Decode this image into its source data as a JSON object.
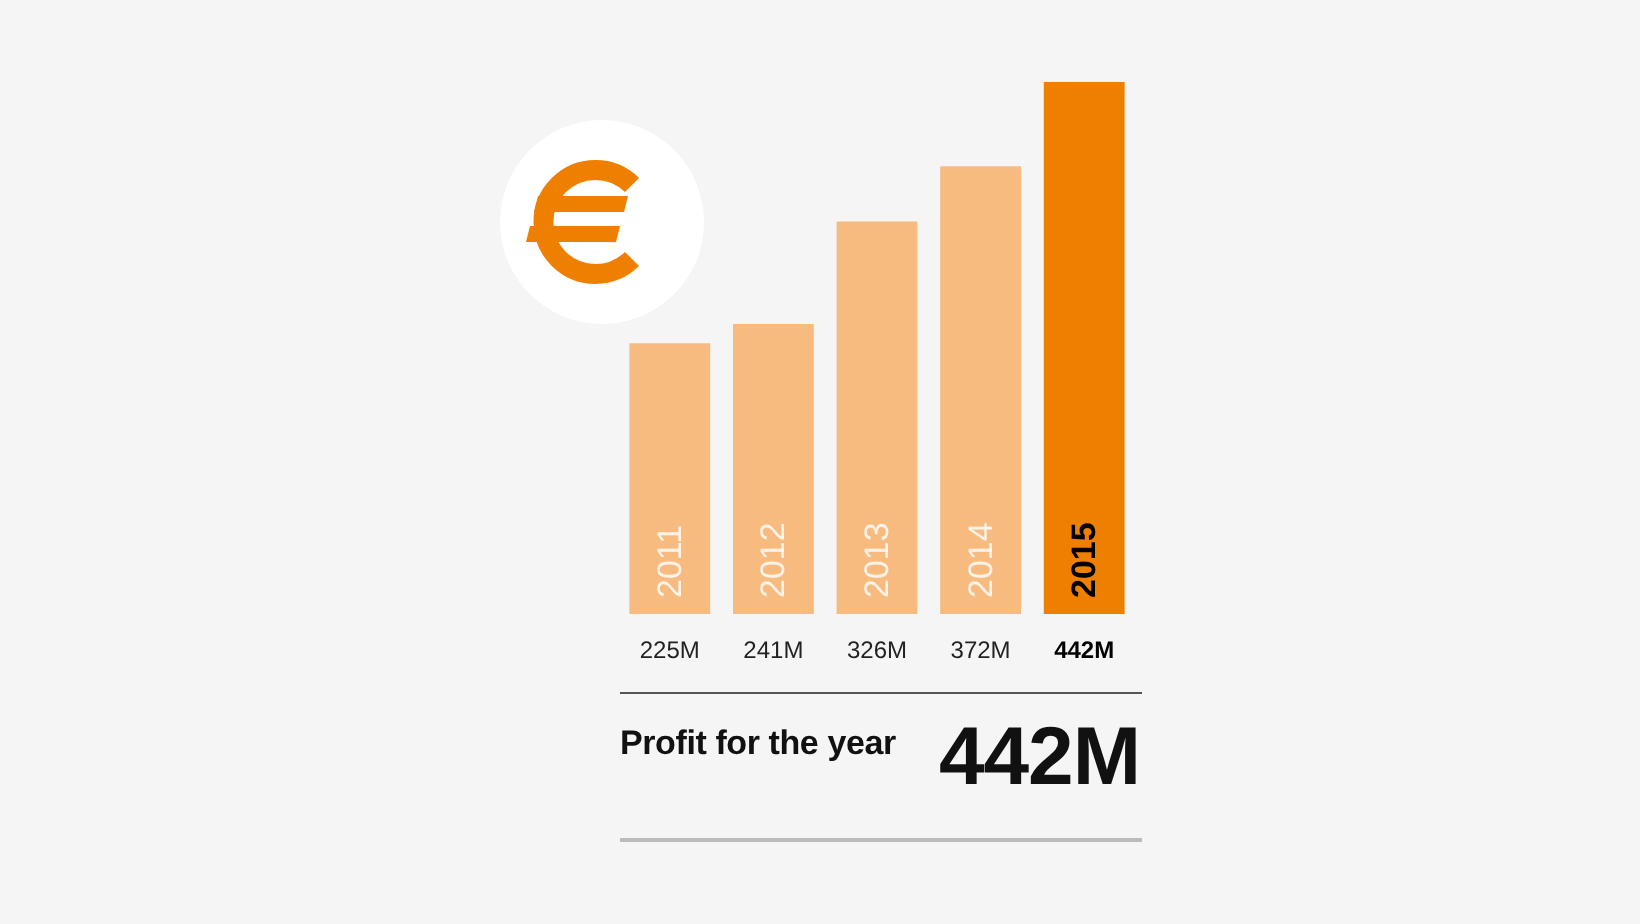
{
  "chart_data": {
    "type": "bar",
    "title": "Profit for the year",
    "annotations": [
      "442M"
    ],
    "categories": [
      "2011",
      "2012",
      "2013",
      "2014",
      "2015"
    ],
    "values": [
      225,
      241,
      326,
      372,
      442
    ],
    "value_labels": [
      "225M",
      "241M",
      "326M",
      "372M",
      "442M"
    ],
    "colors": [
      "#f7bb80",
      "#f7bb80",
      "#f7bb80",
      "#f7bb80",
      "#ee7f00"
    ]
  }
}
